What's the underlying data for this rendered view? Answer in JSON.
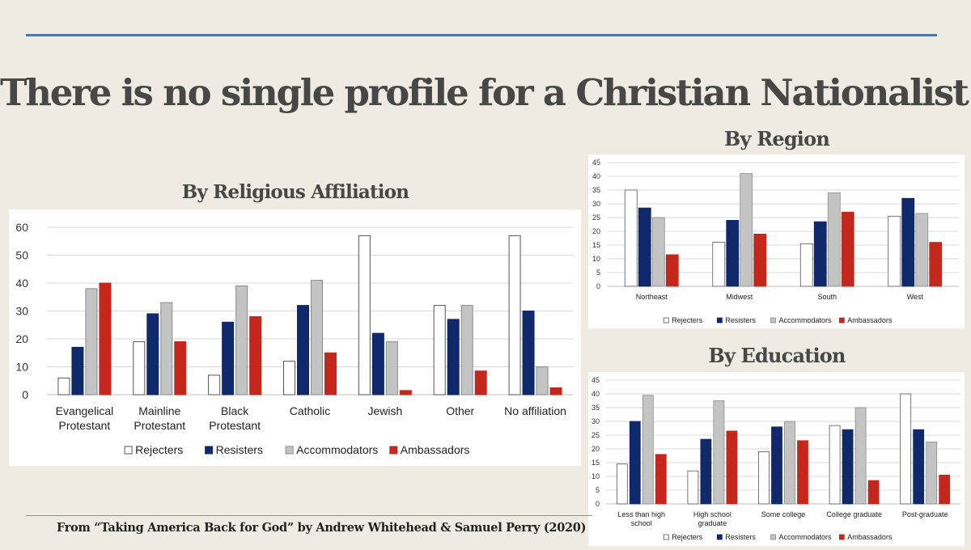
{
  "title": "There is no single profile for a Christian Nationalist",
  "footer": "From “Taking America Back for God” by Andrew Whitehead & Samuel Perry (2020)",
  "colors": {
    "Rejecters": "#ffffff",
    "Resisters": "#10296b",
    "Accommodators": "#c4c4c4",
    "Ambassadors": "#c4281c",
    "background": "#efebe2",
    "rule": "#4a76a8"
  },
  "chart_data": [
    {
      "id": "religion",
      "type": "bar",
      "title": "By Religious Affiliation",
      "categories": [
        "Evangelical Protestant",
        "Mainline Protestant",
        "Black Protestant",
        "Catholic",
        "Jewish",
        "Other",
        "No affiliation"
      ],
      "category_lines": [
        [
          "Evangelical",
          "Protestant"
        ],
        [
          "Mainline",
          "Protestant"
        ],
        [
          "Black",
          "Protestant"
        ],
        [
          "Catholic"
        ],
        [
          "Jewish"
        ],
        [
          "Other"
        ],
        [
          "No affiliation"
        ]
      ],
      "series": [
        {
          "name": "Rejecters",
          "values": [
            6,
            19,
            7,
            12,
            57,
            32,
            57
          ]
        },
        {
          "name": "Resisters",
          "values": [
            17,
            29,
            26,
            32,
            22,
            27,
            30
          ]
        },
        {
          "name": "Accommodators",
          "values": [
            38,
            33,
            39,
            41,
            19,
            32,
            10
          ]
        },
        {
          "name": "Ambassadors",
          "values": [
            40,
            19,
            28,
            15,
            1.5,
            8.5,
            2.5
          ]
        }
      ],
      "ylim": [
        0,
        60
      ],
      "yticks": [
        0,
        10,
        20,
        30,
        40,
        50,
        60
      ],
      "legend": "bottom",
      "grid": true
    },
    {
      "id": "region",
      "type": "bar",
      "title": "By Region",
      "categories": [
        "Northeast",
        "Midwest",
        "South",
        "West"
      ],
      "category_lines": [
        [
          "Northeast"
        ],
        [
          "Midwest"
        ],
        [
          "South"
        ],
        [
          "West"
        ]
      ],
      "series": [
        {
          "name": "Rejecters",
          "values": [
            35,
            16,
            15.5,
            25.5
          ]
        },
        {
          "name": "Resisters",
          "values": [
            28.5,
            24,
            23.5,
            32
          ]
        },
        {
          "name": "Accommodators",
          "values": [
            25,
            41,
            34,
            26.5
          ]
        },
        {
          "name": "Ambassadors",
          "values": [
            11.5,
            19,
            27,
            16
          ]
        }
      ],
      "ylim": [
        0,
        45
      ],
      "yticks": [
        0,
        5,
        10,
        15,
        20,
        25,
        30,
        35,
        40,
        45
      ],
      "legend": "bottom",
      "grid": true
    },
    {
      "id": "education",
      "type": "bar",
      "title": "By Education",
      "categories": [
        "Less than high school",
        "High school graduate",
        "Some college",
        "College graduate",
        "Post-graduate"
      ],
      "category_lines": [
        [
          "Less than high",
          "school"
        ],
        [
          "High school",
          "graduate"
        ],
        [
          "Some college"
        ],
        [
          "College graduate"
        ],
        [
          "Post-graduate"
        ]
      ],
      "series": [
        {
          "name": "Rejecters",
          "values": [
            14.5,
            12,
            19,
            28.5,
            40
          ]
        },
        {
          "name": "Resisters",
          "values": [
            30,
            23.5,
            28,
            27,
            27
          ]
        },
        {
          "name": "Accommodators",
          "values": [
            39.5,
            37.5,
            30,
            35,
            22.5
          ]
        },
        {
          "name": "Ambassadors",
          "values": [
            18,
            26.5,
            23,
            8.5,
            10.5
          ]
        }
      ],
      "ylim": [
        0,
        45
      ],
      "yticks": [
        0,
        5,
        10,
        15,
        20,
        25,
        30,
        35,
        40,
        45
      ],
      "legend": "bottom",
      "grid": true
    }
  ]
}
